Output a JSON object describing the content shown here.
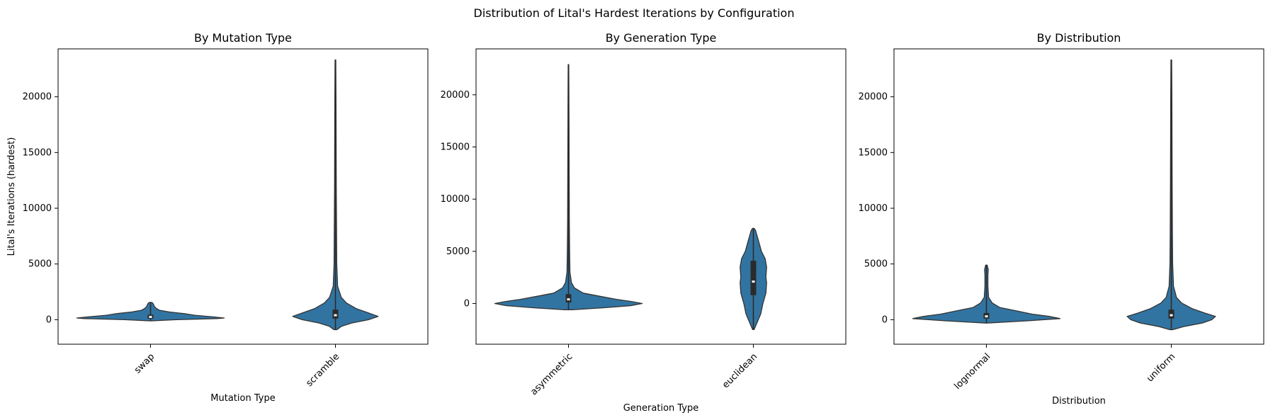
{
  "suptitle": "Distribution of Lital's Hardest Iterations by Configuration",
  "colors": {
    "violin": "#3274a1",
    "edge": "#333333",
    "box": "#2b2b2b",
    "median": "#ffffff"
  },
  "chart_data": [
    {
      "type": "violin",
      "title": "By Mutation Type",
      "xlabel": "Mutation Type",
      "ylabel": "Lital's Iterations (hardest)",
      "categories": [
        "swap",
        "scramble"
      ],
      "ylim": [
        -2200,
        24300
      ],
      "yticks": [
        0,
        5000,
        10000,
        15000,
        20000
      ],
      "grid": false,
      "violins": [
        {
          "category": "swap",
          "min": -100,
          "max": 1550,
          "q1": 100,
          "median": 250,
          "q3": 450,
          "profile": [
            [
              -100,
              0.02
            ],
            [
              0,
              0.35
            ],
            [
              100,
              0.9
            ],
            [
              150,
              1.0
            ],
            [
              250,
              0.85
            ],
            [
              400,
              0.6
            ],
            [
              550,
              0.45
            ],
            [
              700,
              0.25
            ],
            [
              850,
              0.12
            ],
            [
              1000,
              0.08
            ],
            [
              1200,
              0.05
            ],
            [
              1400,
              0.04
            ],
            [
              1550,
              0.02
            ]
          ]
        },
        {
          "category": "scramble",
          "min": -900,
          "max": 23300,
          "q1": 100,
          "median": 400,
          "q3": 900,
          "profile": [
            [
              -900,
              0.02
            ],
            [
              -600,
              0.08
            ],
            [
              -300,
              0.22
            ],
            [
              0,
              0.45
            ],
            [
              300,
              0.58
            ],
            [
              600,
              0.45
            ],
            [
              1000,
              0.28
            ],
            [
              1500,
              0.15
            ],
            [
              2000,
              0.08
            ],
            [
              3000,
              0.03
            ],
            [
              5000,
              0.018
            ],
            [
              8000,
              0.015
            ],
            [
              12000,
              0.012
            ],
            [
              16000,
              0.01
            ],
            [
              20000,
              0.008
            ],
            [
              23300,
              0.005
            ]
          ]
        }
      ]
    },
    {
      "type": "violin",
      "title": "By Generation Type",
      "xlabel": "Generation Type",
      "ylabel": "",
      "categories": [
        "asymmetric",
        "euclidean"
      ],
      "ylim": [
        -3900,
        24400
      ],
      "yticks": [
        0,
        5000,
        10000,
        15000,
        20000
      ],
      "grid": false,
      "violins": [
        {
          "category": "asymmetric",
          "min": -600,
          "max": 22900,
          "q1": 100,
          "median": 400,
          "q3": 900,
          "profile": [
            [
              -600,
              0.05
            ],
            [
              -400,
              0.5
            ],
            [
              -200,
              0.85
            ],
            [
              0,
              1.0
            ],
            [
              200,
              0.85
            ],
            [
              400,
              0.65
            ],
            [
              700,
              0.42
            ],
            [
              1000,
              0.2
            ],
            [
              1500,
              0.08
            ],
            [
              2000,
              0.04
            ],
            [
              3000,
              0.02
            ],
            [
              5000,
              0.015
            ],
            [
              8000,
              0.012
            ],
            [
              12000,
              0.01
            ],
            [
              16000,
              0.008
            ],
            [
              20000,
              0.006
            ],
            [
              22900,
              0.004
            ]
          ]
        },
        {
          "category": "euclidean",
          "min": -2500,
          "max": 7200,
          "q1": 800,
          "median": 2100,
          "q3": 4100,
          "profile": [
            [
              -2500,
              0.01
            ],
            [
              -2000,
              0.04
            ],
            [
              -1000,
              0.1
            ],
            [
              0,
              0.13
            ],
            [
              500,
              0.15
            ],
            [
              1000,
              0.17
            ],
            [
              2000,
              0.18
            ],
            [
              2500,
              0.17
            ],
            [
              3500,
              0.18
            ],
            [
              4300,
              0.16
            ],
            [
              5000,
              0.11
            ],
            [
              6000,
              0.07
            ],
            [
              7000,
              0.03
            ],
            [
              7200,
              0.01
            ]
          ]
        }
      ]
    },
    {
      "type": "violin",
      "title": "By Distribution",
      "xlabel": "Distribution",
      "ylabel": "",
      "categories": [
        "lognormal",
        "uniform"
      ],
      "ylim": [
        -2200,
        24300
      ],
      "yticks": [
        0,
        5000,
        10000,
        15000,
        20000
      ],
      "grid": false,
      "violins": [
        {
          "category": "lognormal",
          "min": -300,
          "max": 4900,
          "q1": 100,
          "median": 300,
          "q3": 600,
          "profile": [
            [
              -300,
              0.02
            ],
            [
              -100,
              0.55
            ],
            [
              100,
              1.0
            ],
            [
              300,
              0.85
            ],
            [
              500,
              0.62
            ],
            [
              800,
              0.4
            ],
            [
              1100,
              0.18
            ],
            [
              1500,
              0.08
            ],
            [
              2000,
              0.03
            ],
            [
              3000,
              0.02
            ],
            [
              4000,
              0.02
            ],
            [
              4500,
              0.025
            ],
            [
              4900,
              0.01
            ]
          ]
        },
        {
          "category": "uniform",
          "min": -900,
          "max": 23300,
          "q1": 100,
          "median": 400,
          "q3": 900,
          "profile": [
            [
              -900,
              0.02
            ],
            [
              -600,
              0.18
            ],
            [
              -300,
              0.42
            ],
            [
              0,
              0.55
            ],
            [
              300,
              0.6
            ],
            [
              600,
              0.45
            ],
            [
              1000,
              0.28
            ],
            [
              1500,
              0.14
            ],
            [
              2000,
              0.07
            ],
            [
              3000,
              0.03
            ],
            [
              5000,
              0.018
            ],
            [
              8000,
              0.014
            ],
            [
              12000,
              0.012
            ],
            [
              16000,
              0.01
            ],
            [
              20000,
              0.008
            ],
            [
              23300,
              0.005
            ]
          ]
        }
      ]
    }
  ]
}
